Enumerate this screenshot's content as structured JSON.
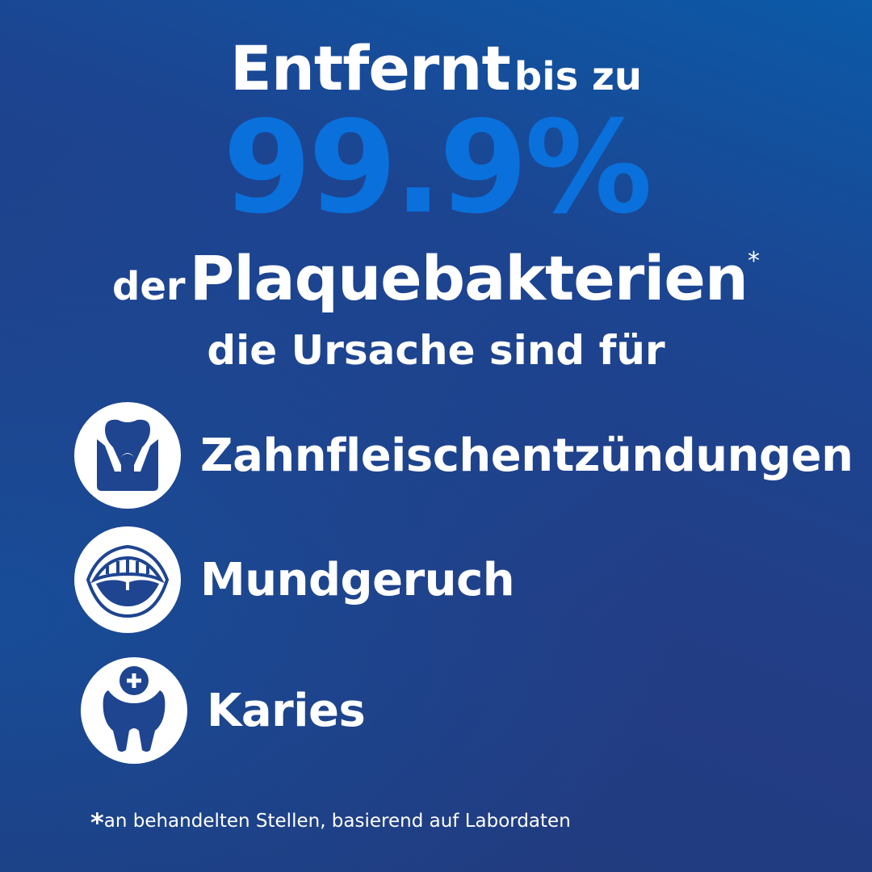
{
  "headline": {
    "word1": "Entfernt",
    "word2": "bis zu",
    "percent": "99.9%",
    "word3": "der",
    "word4": "Plaquebakterien",
    "asterisk": "*",
    "line4": "die Ursache sind für"
  },
  "items": [
    {
      "label": "Zahnfleischentzündungen",
      "icon": "gum-tooth-icon"
    },
    {
      "label": "Mundgeruch",
      "icon": "open-mouth-icon"
    },
    {
      "label": "Karies",
      "icon": "tooth-cross-icon"
    }
  ],
  "footnote": {
    "asterisk": "*",
    "text": "an behandelten Stellen, basierend auf Labordaten"
  },
  "colors": {
    "accent": "#0a70dc",
    "background": "#213d85",
    "icon_fill": "#1f4590"
  }
}
